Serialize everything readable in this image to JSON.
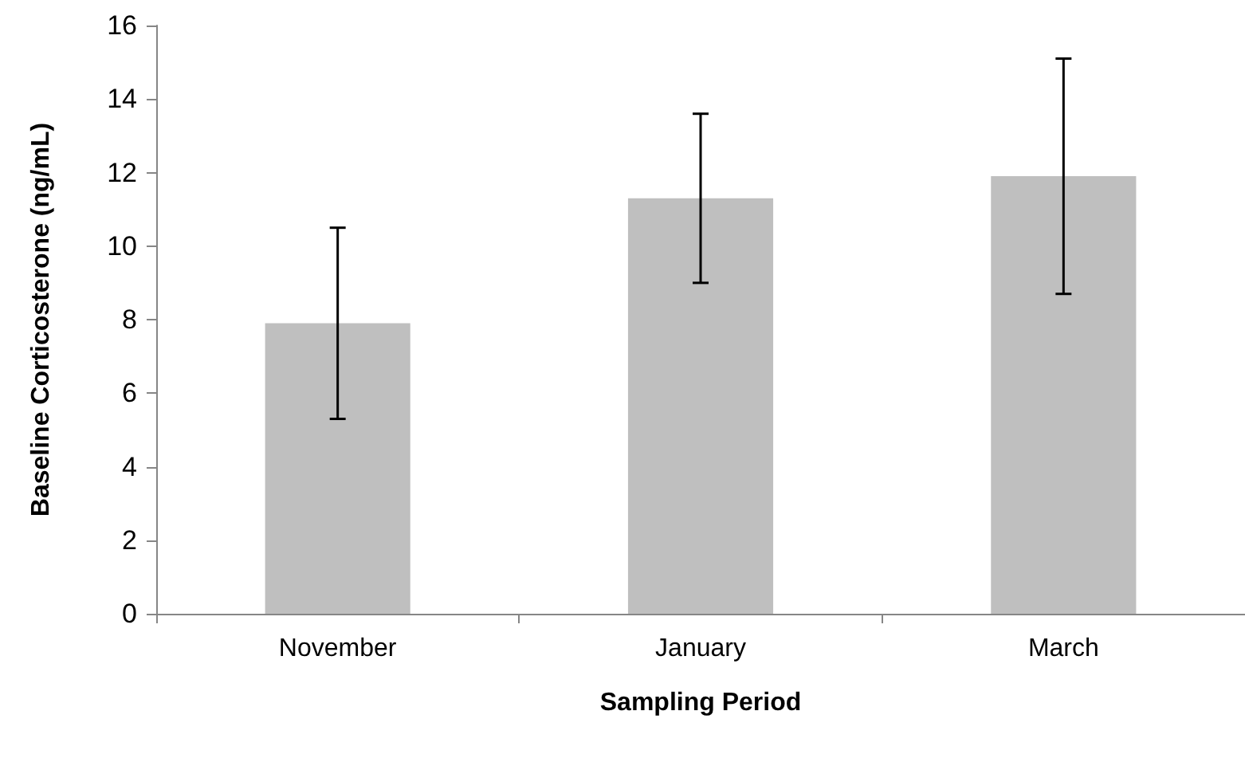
{
  "chart_data": {
    "type": "bar",
    "xlabel": "Sampling Period",
    "ylabel": "Baseline Corticosterone (ng/mL)",
    "categories": [
      "November",
      "January",
      "March"
    ],
    "values": [
      7.9,
      11.3,
      11.9
    ],
    "errors": [
      2.6,
      2.3,
      3.2
    ],
    "color": "#bfbfbf",
    "ylim": [
      0,
      16
    ],
    "yticks": [
      0,
      2,
      4,
      6,
      8,
      10,
      12,
      14,
      16
    ],
    "grid": false
  }
}
